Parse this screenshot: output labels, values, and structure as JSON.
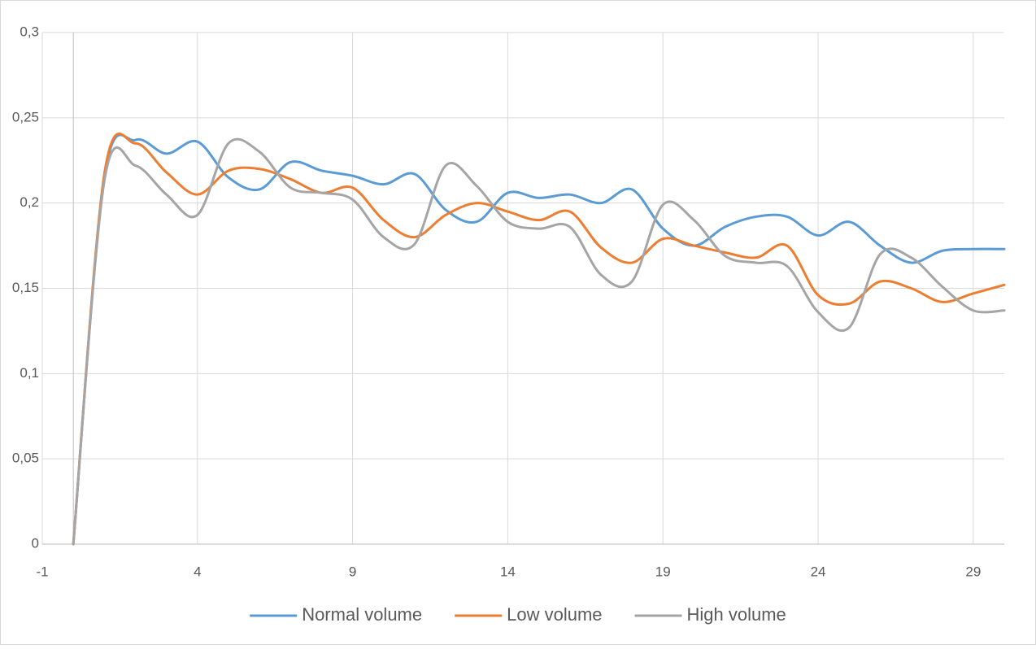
{
  "chart_data": {
    "type": "line",
    "x": [
      0,
      1,
      2,
      3,
      4,
      5,
      6,
      7,
      8,
      9,
      10,
      11,
      12,
      13,
      14,
      15,
      16,
      17,
      18,
      19,
      20,
      21,
      22,
      23,
      24,
      25,
      26,
      27,
      28,
      29,
      30
    ],
    "series": [
      {
        "name": "Normal volume",
        "color": "#5b9bd5",
        "values": [
          0,
          0.215,
          0.237,
          0.229,
          0.236,
          0.215,
          0.208,
          0.224,
          0.219,
          0.216,
          0.211,
          0.217,
          0.196,
          0.189,
          0.206,
          0.203,
          0.205,
          0.2,
          0.208,
          0.185,
          0.175,
          0.186,
          0.192,
          0.192,
          0.181,
          0.189,
          0.175,
          0.165,
          0.172,
          0.173,
          0.173
        ]
      },
      {
        "name": "Low volume",
        "color": "#ed7d31",
        "values": [
          0,
          0.217,
          0.235,
          0.218,
          0.205,
          0.219,
          0.22,
          0.214,
          0.206,
          0.209,
          0.19,
          0.18,
          0.193,
          0.2,
          0.195,
          0.19,
          0.195,
          0.174,
          0.165,
          0.179,
          0.175,
          0.171,
          0.168,
          0.175,
          0.146,
          0.141,
          0.154,
          0.15,
          0.142,
          0.147,
          0.152
        ]
      },
      {
        "name": "High volume",
        "color": "#a5a5a5",
        "values": [
          0,
          0.213,
          0.222,
          0.205,
          0.193,
          0.235,
          0.23,
          0.209,
          0.206,
          0.202,
          0.18,
          0.176,
          0.222,
          0.21,
          0.189,
          0.185,
          0.186,
          0.158,
          0.154,
          0.199,
          0.19,
          0.169,
          0.165,
          0.163,
          0.136,
          0.127,
          0.17,
          0.168,
          0.151,
          0.137,
          0.137
        ]
      }
    ],
    "xlim": [
      -1,
      30
    ],
    "xticks": [
      -1,
      4,
      9,
      14,
      19,
      24,
      29
    ],
    "ylim": [
      0,
      0.3
    ],
    "yticks": [
      0,
      {
        "value": 0.05,
        "label": "0,05"
      },
      {
        "value": 0.1,
        "label": "0,1"
      },
      {
        "value": 0.15,
        "label": "0,15"
      },
      {
        "value": 0.2,
        "label": "0,2"
      },
      {
        "value": 0.25,
        "label": "0,25"
      },
      {
        "value": 0.3,
        "label": "0,3"
      }
    ],
    "y_axis_at": 0,
    "grid": true,
    "smooth": true,
    "legend": "bottom"
  }
}
